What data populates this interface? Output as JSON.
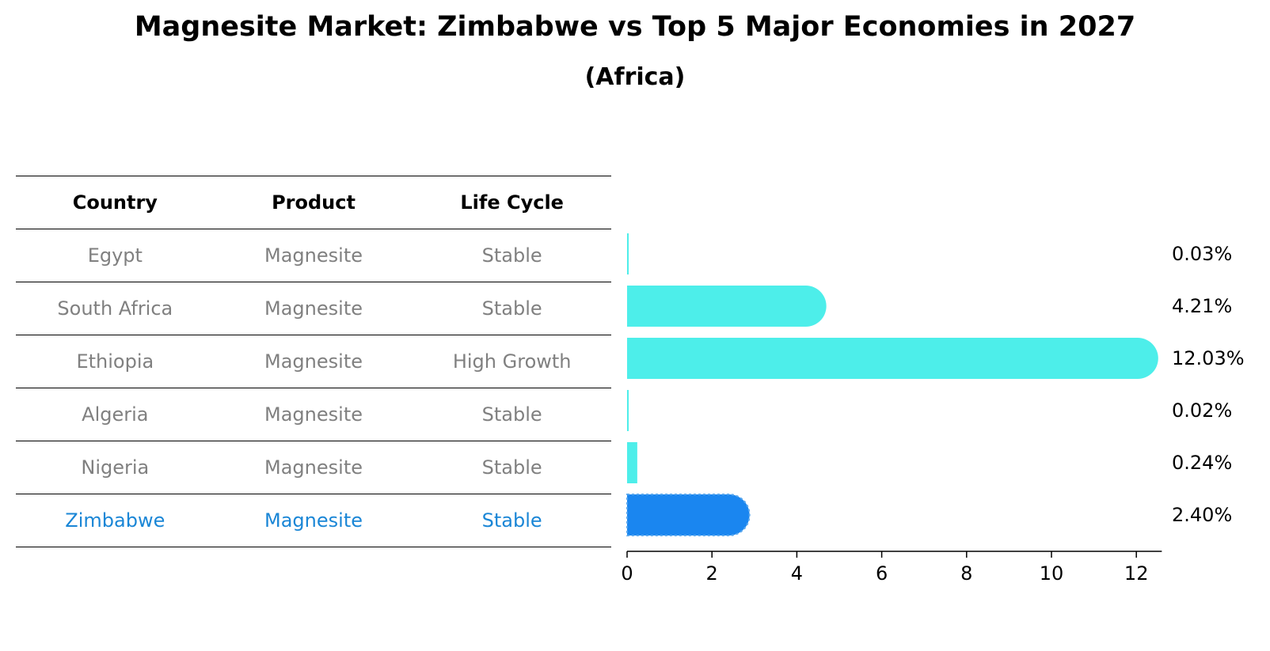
{
  "title": "Magnesite Market: Zimbabwe vs Top 5 Major Economies in 2027",
  "subtitle": "(Africa)",
  "table": {
    "headers": [
      "Country",
      "Product",
      "Life Cycle"
    ],
    "rows": [
      {
        "country": "Egypt",
        "product": "Magnesite",
        "life_cycle": "Stable"
      },
      {
        "country": "South Africa",
        "product": "Magnesite",
        "life_cycle": "Stable"
      },
      {
        "country": "Ethiopia",
        "product": "Magnesite",
        "life_cycle": "High Growth"
      },
      {
        "country": "Algeria",
        "product": "Magnesite",
        "life_cycle": "Stable"
      },
      {
        "country": "Nigeria",
        "product": "Magnesite",
        "life_cycle": "Stable"
      },
      {
        "country": "Zimbabwe",
        "product": "Magnesite",
        "life_cycle": "Stable"
      }
    ]
  },
  "chart_data": {
    "type": "bar",
    "orientation": "horizontal",
    "categories": [
      "Egypt",
      "South Africa",
      "Ethiopia",
      "Algeria",
      "Nigeria",
      "Zimbabwe"
    ],
    "values": [
      0.03,
      4.21,
      12.03,
      0.02,
      0.24,
      2.4
    ],
    "data_labels": [
      "0.03%",
      "4.21%",
      "12.03%",
      "0.02%",
      "0.24%",
      "2.40%"
    ],
    "highlight_category": "Zimbabwe",
    "xlim": [
      0,
      12.6
    ],
    "xticks": [
      0,
      2,
      4,
      6,
      8,
      10,
      12
    ],
    "grid": false,
    "colors": {
      "bar": "#4deeea",
      "highlight_bar": "#1a86f0",
      "highlight_text": "#1a86d6",
      "row_text": "#808080"
    }
  }
}
